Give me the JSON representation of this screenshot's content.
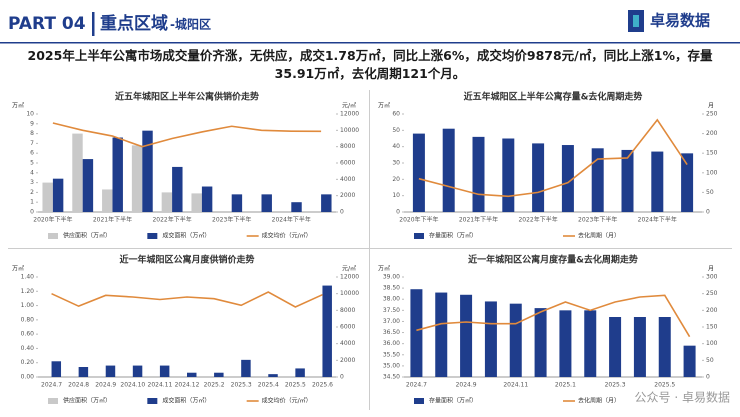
{
  "header": {
    "part": "PART 04",
    "title": "重点区域",
    "subtitle": "-城阳区",
    "logo": "卓易数据"
  },
  "summary": "2025年上半年公寓市场成交量价齐涨，无供应，成交1.78万㎡，同比上涨6%，成交均价9878元/㎡，同比上涨1%，存量35.91万㎡，去化周期121个月。",
  "watermark": "公众号 · 卓易数据",
  "chart_data": [
    {
      "type": "combo",
      "title": "近五年城阳区上半年公寓供销价走势",
      "ylabel": "万㎡",
      "y2label": "元/㎡",
      "categories": [
        "2020年下半年",
        null,
        "2021年下半年",
        null,
        "2022年下半年",
        null,
        "2023年下半年",
        null,
        "2024年下半年",
        null
      ],
      "series": [
        {
          "name": "供应面积（万㎡）",
          "kind": "bar",
          "color": "#c9c9c9",
          "values": [
            3.0,
            8.0,
            2.3,
            6.8,
            2.0,
            1.9,
            0,
            0,
            0,
            0
          ]
        },
        {
          "name": "成交面积（万㎡）",
          "kind": "bar",
          "color": "#1f3d8c",
          "values": [
            3.4,
            5.4,
            7.6,
            8.3,
            4.6,
            2.6,
            1.8,
            1.8,
            1.0,
            1.8
          ]
        },
        {
          "name": "成交均价（元/㎡）",
          "kind": "line",
          "axis": "y2",
          "color": "#e08a3c",
          "values": [
            10900,
            10000,
            9300,
            8000,
            9000,
            9800,
            10500,
            10000,
            9900,
            9878
          ]
        }
      ],
      "ylim": [
        0,
        10
      ],
      "yticks": [
        0,
        1,
        2,
        3,
        4,
        5,
        6,
        7,
        8,
        9,
        10
      ],
      "y2lim": [
        0,
        12000
      ],
      "y2ticks": [
        0,
        2000,
        4000,
        6000,
        8000,
        10000,
        12000
      ]
    },
    {
      "type": "combo",
      "title": "近五年城阳区上半年公寓存量&去化周期走势",
      "ylabel": "万㎡",
      "y2label": "月",
      "categories": [
        "2020年下半年",
        null,
        "2021年下半年",
        null,
        "2022年下半年",
        null,
        "2023年下半年",
        null,
        "2024年下半年",
        null
      ],
      "series": [
        {
          "name": "存量面积（万㎡）",
          "kind": "bar",
          "color": "#1f3d8c",
          "values": [
            48,
            51,
            46,
            45,
            42,
            41,
            39,
            38,
            37,
            35.91
          ]
        },
        {
          "name": "去化周期（月）",
          "kind": "line",
          "axis": "y2",
          "color": "#e08a3c",
          "values": [
            85,
            65,
            45,
            40,
            50,
            75,
            135,
            138,
            235,
            121
          ]
        }
      ],
      "ylim": [
        0,
        60
      ],
      "yticks": [
        0,
        10,
        20,
        30,
        40,
        50,
        60
      ],
      "y2lim": [
        0,
        250
      ],
      "y2ticks": [
        0,
        50,
        100,
        150,
        200,
        250
      ]
    },
    {
      "type": "combo",
      "title": "近一年城阳区公寓月度供销价走势",
      "ylabel": "万㎡",
      "y2label": "元/㎡",
      "categories": [
        "2024.7",
        "2024.8",
        "2024.9",
        "2024.10",
        "2024.11",
        "2024.12",
        "2025.2",
        "2025.3",
        "2025.4",
        "2025.5",
        "2025.6"
      ],
      "series": [
        {
          "name": "供应面积（万㎡）",
          "kind": "bar",
          "color": "#c9c9c9",
          "values": [
            0,
            0,
            0,
            0,
            0,
            0,
            0,
            0,
            0,
            0,
            0
          ]
        },
        {
          "name": "成交面积（万㎡）",
          "kind": "bar",
          "color": "#1f3d8c",
          "values": [
            0.22,
            0.14,
            0.16,
            0.16,
            0.16,
            0.06,
            0.06,
            0.24,
            0.04,
            0.12,
            1.28
          ]
        },
        {
          "name": "成交均价（元/㎡）",
          "kind": "line",
          "axis": "y2",
          "color": "#e08a3c",
          "values": [
            10000,
            8500,
            9800,
            9600,
            9300,
            9600,
            9400,
            8600,
            10200,
            8400,
            9878
          ]
        }
      ],
      "ylim": [
        0,
        1.4
      ],
      "yticks": [
        {
          "value": 0,
          "label": "0.00"
        },
        {
          "value": 0.2,
          "label": "0.20"
        },
        {
          "value": 0.4,
          "label": "0.40"
        },
        {
          "value": 0.6,
          "label": "0.60"
        },
        {
          "value": 0.8,
          "label": "0.80"
        },
        {
          "value": 1,
          "label": "1.00"
        },
        {
          "value": 1.2,
          "label": "1.20"
        },
        {
          "value": 1.4,
          "label": "1.40"
        }
      ],
      "y2lim": [
        0,
        12000
      ],
      "y2ticks": [
        0,
        2000,
        4000,
        6000,
        8000,
        10000,
        12000
      ]
    },
    {
      "type": "combo",
      "title": "近一年城阳区公寓月度存量&去化周期走势",
      "ylabel": "万㎡",
      "y2label": "月",
      "categories": [
        "2024.7",
        null,
        "2024.9",
        null,
        "2024.11",
        null,
        "2025.1",
        null,
        "2025.3",
        null,
        "2025.5",
        null
      ],
      "series": [
        {
          "name": "存量面积（万㎡）",
          "kind": "bar",
          "color": "#1f3d8c",
          "values": [
            38.45,
            38.3,
            38.2,
            37.9,
            37.8,
            37.6,
            37.5,
            37.5,
            37.2,
            37.2,
            37.2,
            35.91
          ]
        },
        {
          "name": "去化周期（月）",
          "kind": "line",
          "axis": "y2",
          "color": "#e08a3c",
          "values": [
            140,
            160,
            165,
            160,
            160,
            195,
            225,
            200,
            225,
            240,
            245,
            121
          ]
        }
      ],
      "ylim": [
        34.5,
        39
      ],
      "yticks": [
        {
          "value": 34.5,
          "label": "34.50"
        },
        {
          "value": 35,
          "label": "35.00"
        },
        {
          "value": 35.5,
          "label": "35.50"
        },
        {
          "value": 36,
          "label": "36.00"
        },
        {
          "value": 36.5,
          "label": "36.50"
        },
        {
          "value": 37,
          "label": "37.00"
        },
        {
          "value": 37.5,
          "label": "37.50"
        },
        {
          "value": 38,
          "label": "38.00"
        },
        {
          "value": 38.5,
          "label": "38.50"
        },
        {
          "value": 39,
          "label": "39.00"
        }
      ],
      "y2lim": [
        0,
        300
      ],
      "y2ticks": [
        0,
        50,
        100,
        150,
        200,
        250,
        300
      ]
    }
  ]
}
